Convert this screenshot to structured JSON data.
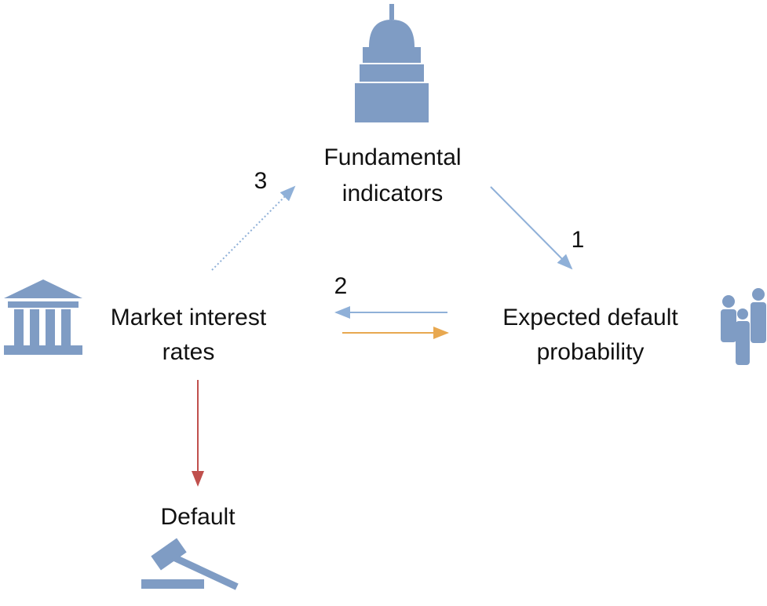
{
  "nodes": [
    {
      "label": [
        "Fundamental",
        "indicators"
      ]
    },
    {
      "label": [
        "Expected default",
        "probability"
      ]
    },
    {
      "label": [
        "Market interest",
        "rates"
      ]
    },
    {
      "label": [
        "Default"
      ]
    }
  ],
  "edges": [
    {
      "label": "1"
    },
    {
      "label": "2"
    },
    {
      "label": "3"
    }
  ]
}
